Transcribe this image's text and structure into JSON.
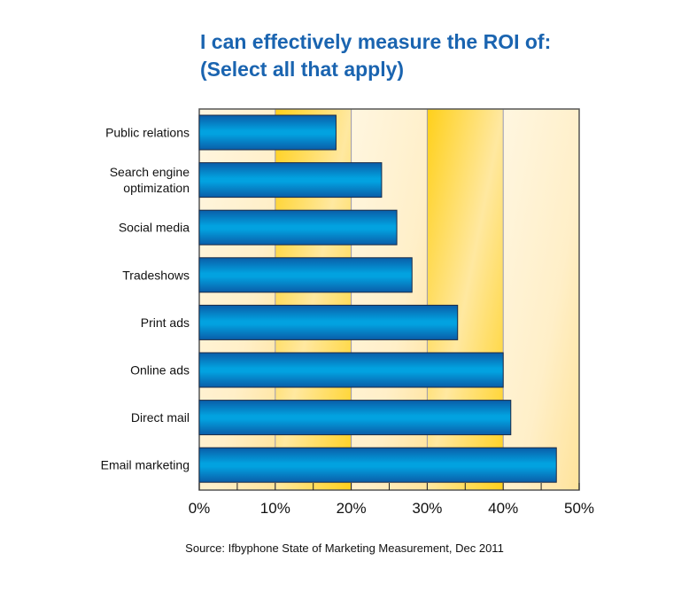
{
  "chart_data": {
    "type": "bar",
    "orientation": "horizontal",
    "title": "I can effectively measure the ROI of:",
    "subtitle": "(Select all that apply)",
    "categories": [
      [
        "Public relations"
      ],
      [
        "Search engine",
        "optimization"
      ],
      [
        "Social media"
      ],
      [
        "Tradeshows"
      ],
      [
        "Print ads"
      ],
      [
        "Online ads"
      ],
      [
        "Direct mail"
      ],
      [
        "Email marketing"
      ]
    ],
    "values": [
      18,
      24,
      26,
      28,
      34,
      40,
      41,
      47
    ],
    "unit": "%",
    "xlim": [
      0,
      50
    ],
    "xticks": [
      "0%",
      "10%",
      "20%",
      "30%",
      "40%",
      "50%"
    ],
    "grid": true,
    "bar_color": "#0b8fd6",
    "background_colors": [
      "#fff3d6",
      "#ffd23a"
    ],
    "source": "Source: Ifbyphone State of Marketing Measurement, Dec 2011"
  }
}
